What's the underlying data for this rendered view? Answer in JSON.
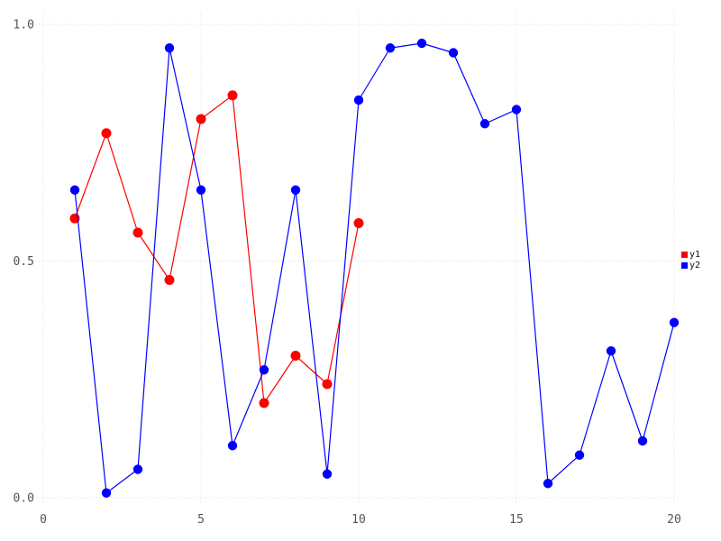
{
  "chart_data": {
    "type": "line",
    "title": "",
    "xlabel": "",
    "ylabel": "",
    "xlim": [
      0,
      20
    ],
    "ylim": [
      0.0,
      1.0
    ],
    "x_ticks": [
      0,
      5,
      10,
      15,
      20
    ],
    "x_tick_labels": [
      "0",
      "5",
      "10",
      "15",
      "20"
    ],
    "y_ticks": [
      0.0,
      0.5,
      1.0
    ],
    "y_tick_labels": [
      "0.0",
      "0.5",
      "1.0"
    ],
    "grid": "dotted",
    "grid_on": true,
    "legend_position": "right",
    "background_color": "#ffffff",
    "grid_color": "#dcdde4",
    "tick_label_color": "#55525a",
    "series": [
      {
        "name": "y1",
        "color": "#ff0000",
        "marker": "circle",
        "x": [
          1,
          2,
          3,
          4,
          5,
          6,
          7,
          8,
          9,
          10
        ],
        "y": [
          0.59,
          0.77,
          0.56,
          0.46,
          0.8,
          0.85,
          0.2,
          0.3,
          0.24,
          0.58
        ]
      },
      {
        "name": "y2",
        "color": "#0000ff",
        "marker": "circle",
        "x": [
          1,
          2,
          3,
          4,
          5,
          6,
          7,
          8,
          9,
          10,
          11,
          12,
          13,
          14,
          15,
          16,
          17,
          18,
          19,
          20
        ],
        "y": [
          0.65,
          0.01,
          0.06,
          0.95,
          0.65,
          0.11,
          0.27,
          0.65,
          0.05,
          0.84,
          0.95,
          0.96,
          0.94,
          0.79,
          0.82,
          0.03,
          0.09,
          0.31,
          0.12,
          0.37
        ]
      }
    ]
  }
}
